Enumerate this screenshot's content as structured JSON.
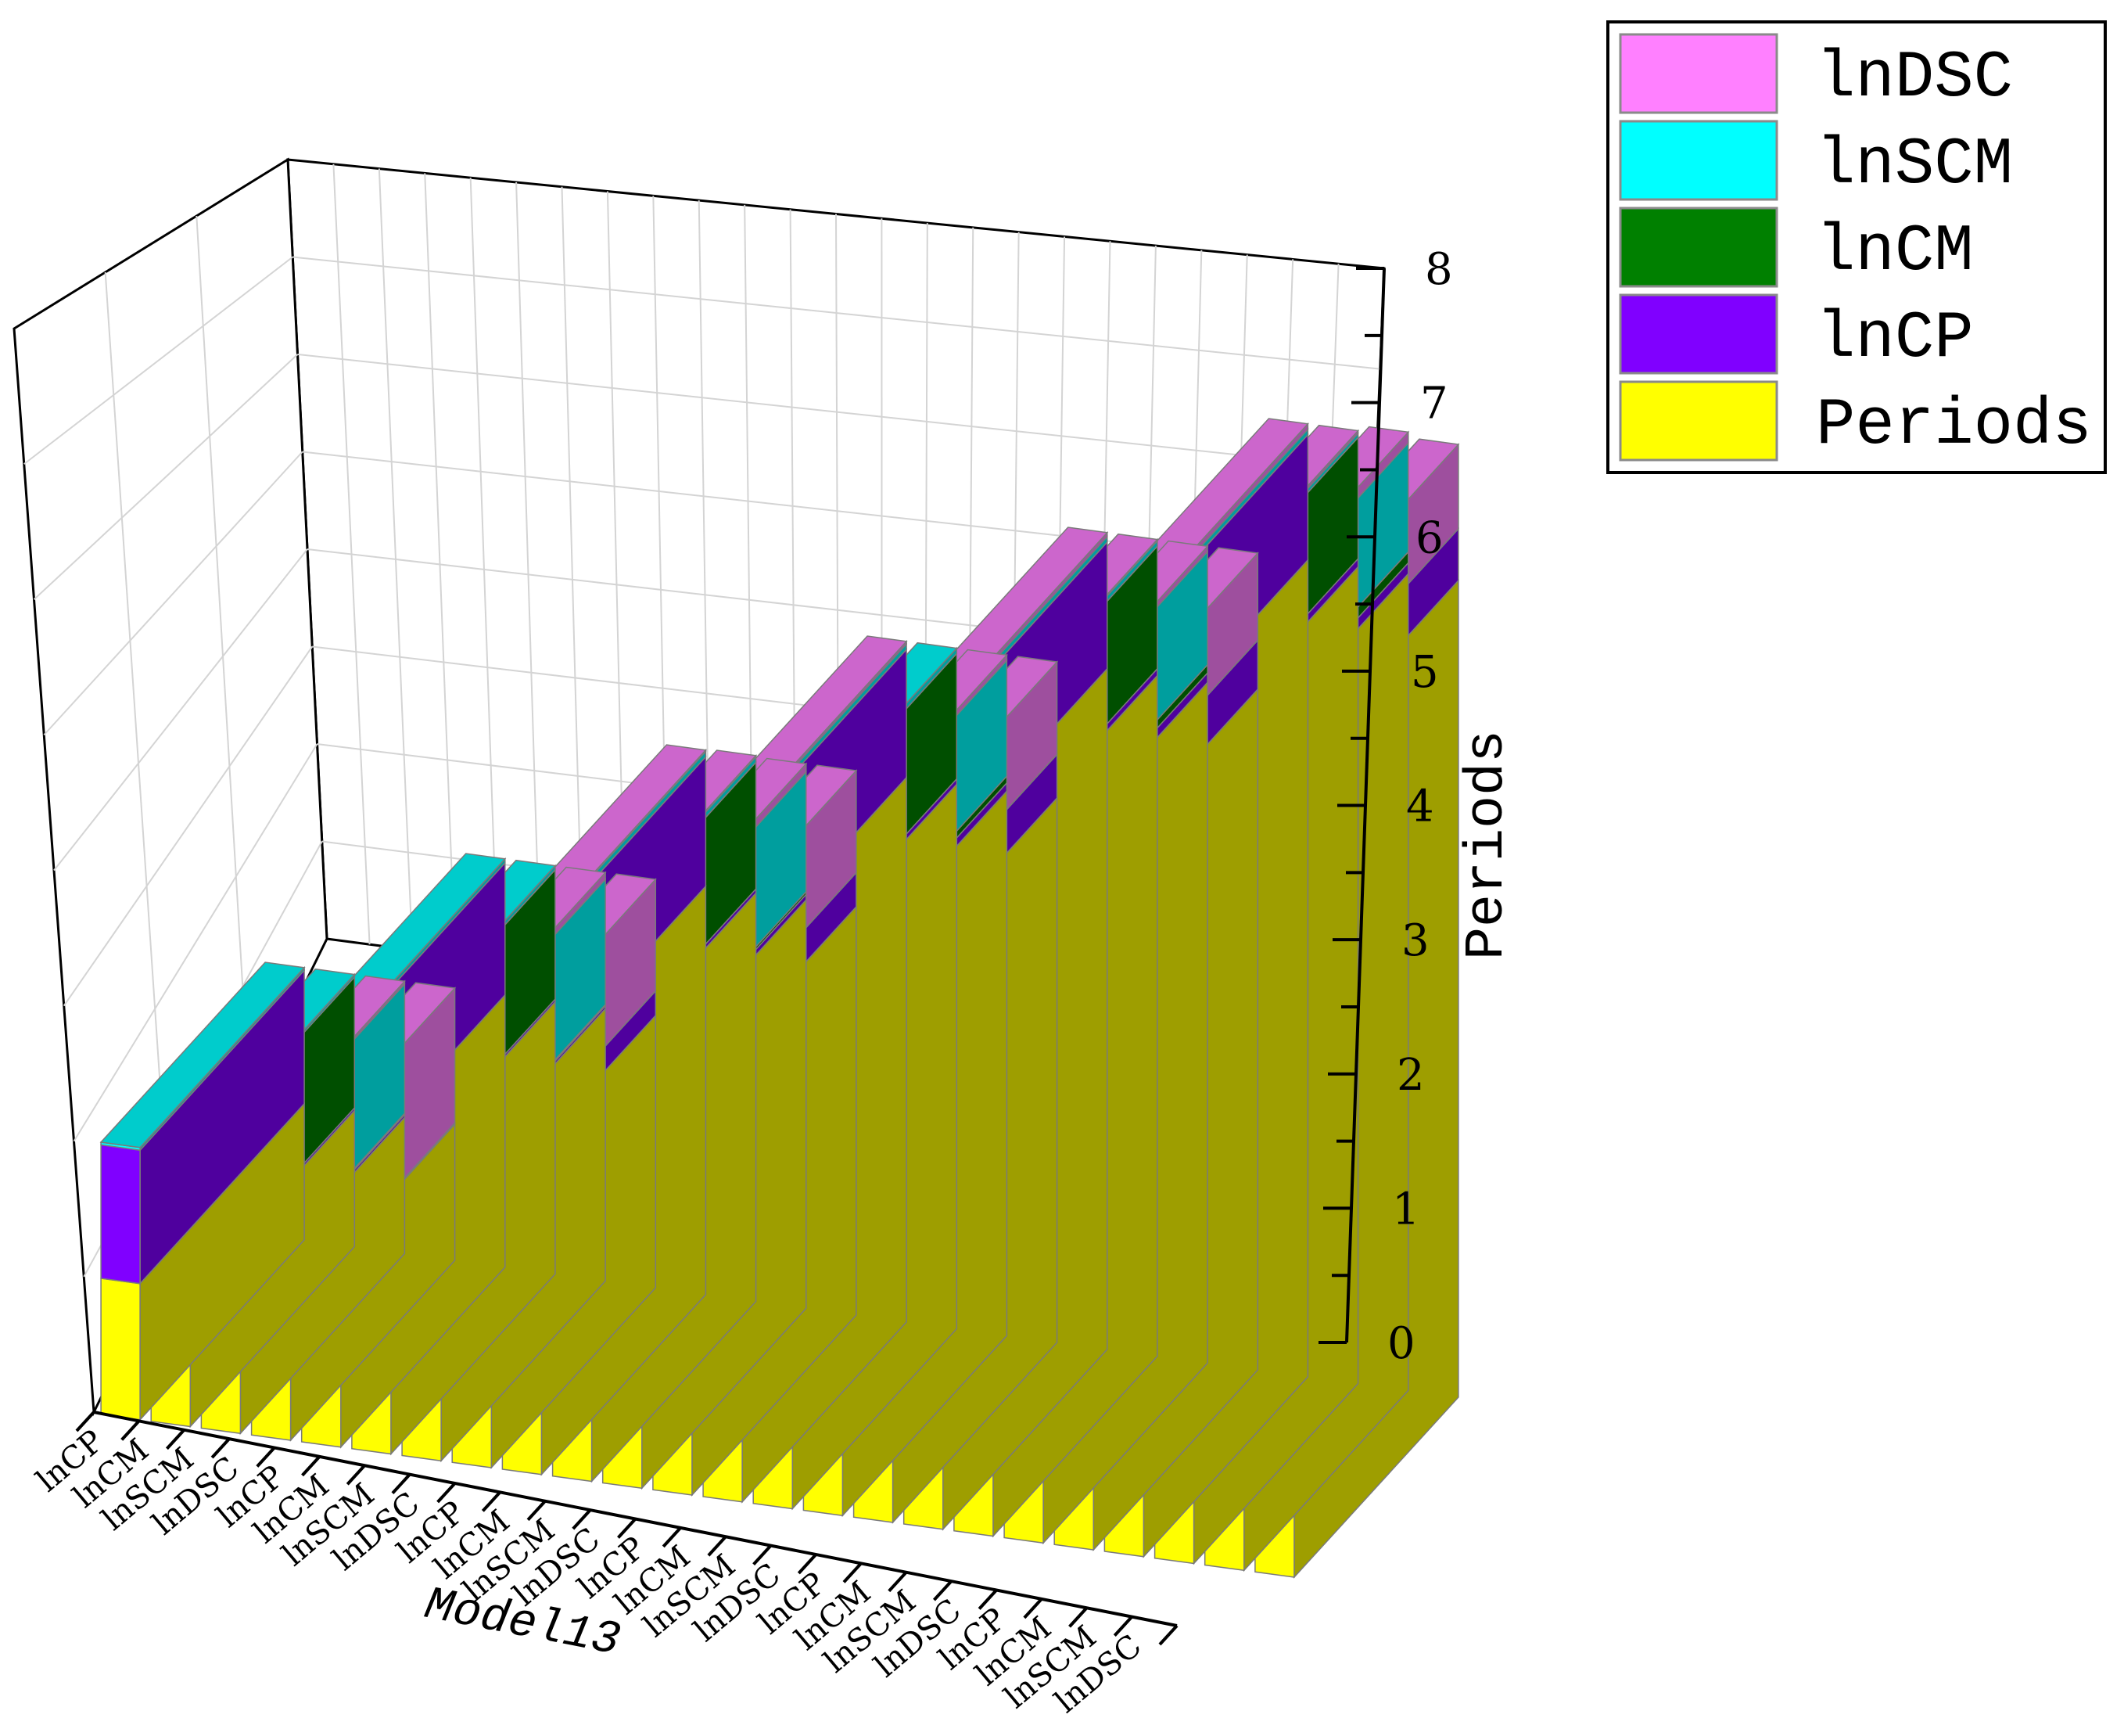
{
  "chart_data": {
    "type": "bar",
    "subtype": "3d-stacked-bar",
    "title": "",
    "xlabel": "Model13",
    "zlabel": "Periods",
    "zlim": [
      0,
      8
    ],
    "zticks": [
      "0",
      "1",
      "2",
      "3",
      "4",
      "5",
      "6",
      "7",
      "8"
    ],
    "categories": [
      "lnCP",
      "lnCM",
      "lnSCM",
      "lnDSC",
      "lnCP",
      "lnCM",
      "lnSCM",
      "lnDSC",
      "lnCP",
      "lnCM",
      "lnSCM",
      "lnDSC",
      "lnCP",
      "lnCM",
      "lnSCM",
      "lnDSC",
      "lnCP",
      "lnCM",
      "lnSCM",
      "lnDSC",
      "lnCP",
      "lnCM",
      "lnSCM",
      "lnDSC"
    ],
    "series": [
      {
        "name": "Periods",
        "color": "#ffff00",
        "values": [
          1,
          1,
          1,
          1,
          2,
          2,
          2,
          2,
          3,
          3,
          3,
          3,
          4,
          4,
          4,
          4,
          5,
          5,
          5,
          5,
          6,
          6,
          6,
          6
        ]
      },
      {
        "name": "lnCP",
        "color": "#8000ff",
        "values": [
          0.98,
          0.02,
          0.02,
          0.01,
          0.97,
          0.02,
          0.02,
          0.18,
          0.95,
          0.03,
          0.04,
          0.25,
          0.94,
          0.04,
          0.06,
          0.32,
          0.93,
          0.05,
          0.07,
          0.36,
          0.92,
          0.06,
          0.08,
          0.38
        ]
      },
      {
        "name": "lnCM",
        "color": "#008000",
        "values": [
          0.0,
          0.96,
          0.01,
          0.0,
          0.0,
          0.95,
          0.01,
          0.0,
          0.0,
          0.93,
          0.02,
          0.0,
          0.0,
          0.92,
          0.05,
          0.0,
          0.0,
          0.9,
          0.06,
          0.0,
          0.0,
          0.89,
          0.08,
          0.0
        ]
      },
      {
        "name": "lnSCM",
        "color": "#00ffff",
        "values": [
          0.02,
          0.02,
          0.95,
          0.0,
          0.03,
          0.03,
          0.92,
          0.0,
          0.04,
          0.04,
          0.88,
          0.0,
          0.04,
          0.04,
          0.85,
          0.0,
          0.04,
          0.04,
          0.83,
          0.0,
          0.04,
          0.03,
          0.8,
          0.0
        ]
      },
      {
        "name": "lnDSC",
        "color": "#ff80ff",
        "values": [
          0.0,
          0.0,
          0.02,
          0.99,
          0.0,
          0.0,
          0.05,
          0.82,
          0.01,
          0.01,
          0.06,
          0.75,
          0.02,
          0.0,
          0.04,
          0.68,
          0.03,
          0.01,
          0.04,
          0.64,
          0.04,
          0.02,
          0.08,
          0.62
        ]
      }
    ],
    "legend": {
      "position": "top-right",
      "entries": [
        {
          "label": "lnDSC",
          "color": "#ff80ff"
        },
        {
          "label": "lnSCM",
          "color": "#00ffff"
        },
        {
          "label": "lnCM",
          "color": "#008000"
        },
        {
          "label": "lnCP",
          "color": "#8000ff"
        },
        {
          "label": "Periods",
          "color": "#ffff00"
        }
      ]
    },
    "grid": true
  }
}
